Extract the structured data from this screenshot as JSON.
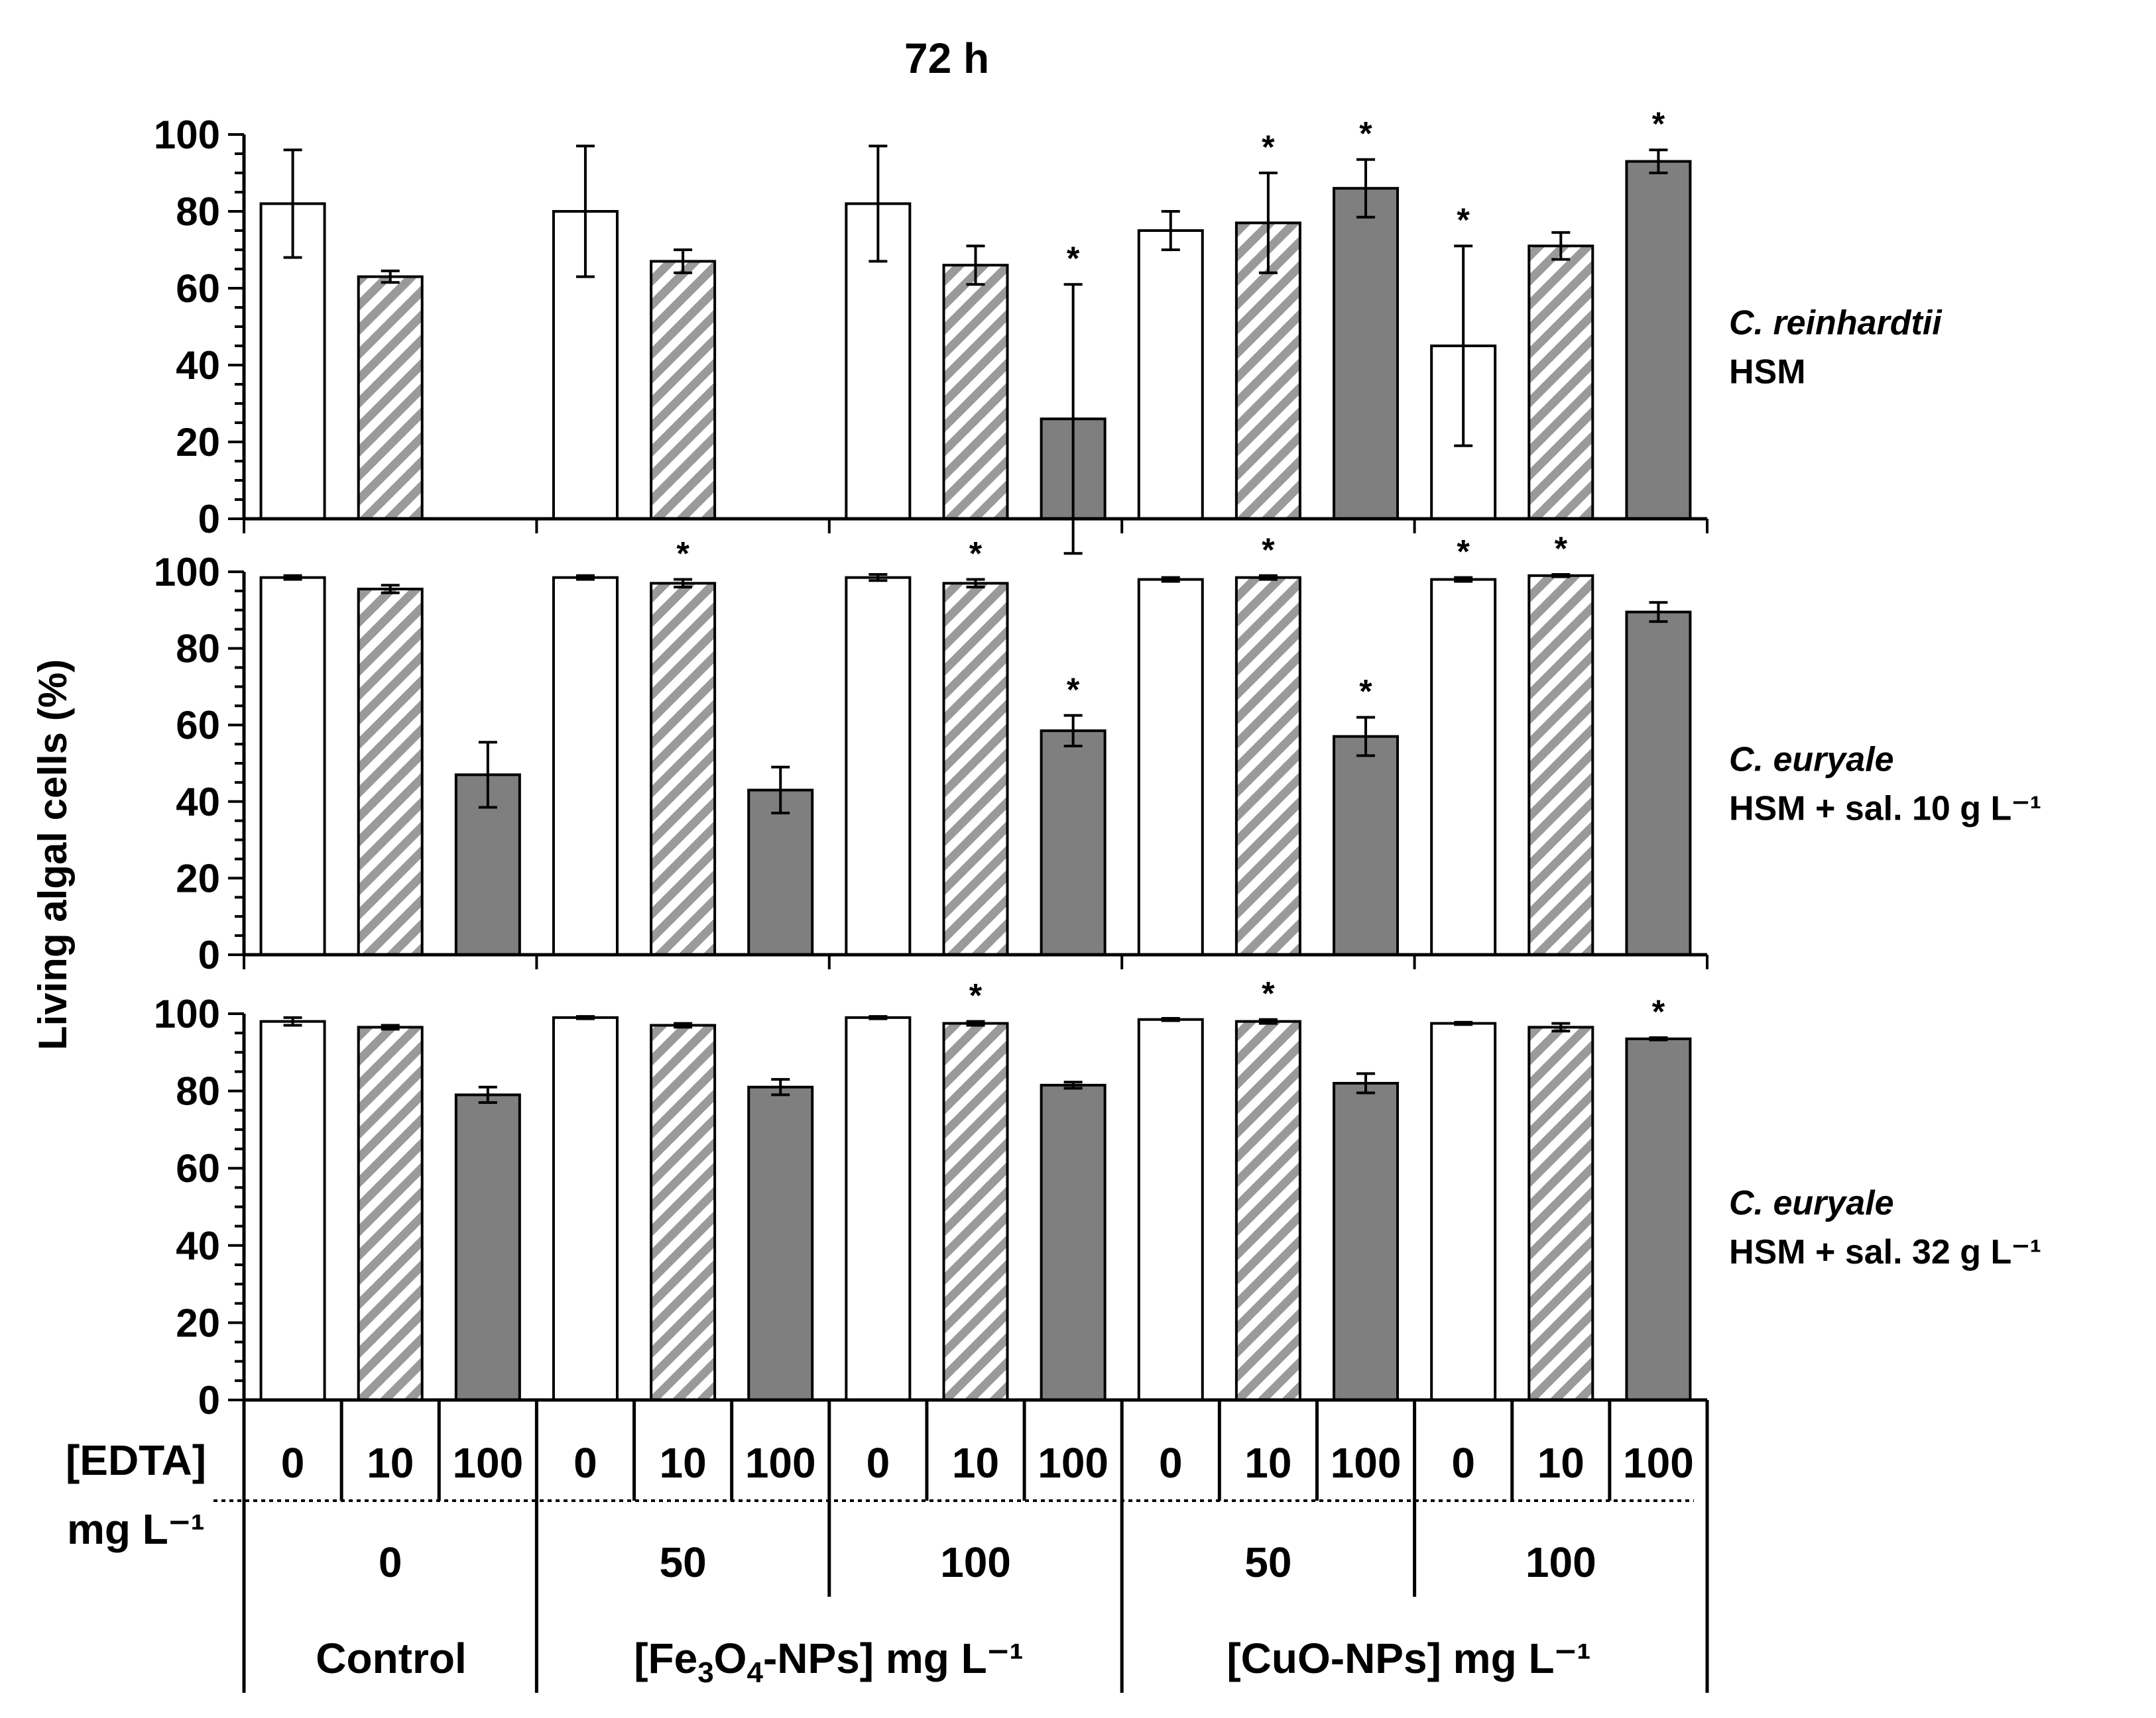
{
  "chart_data": {
    "type": "bar",
    "title": "72 h",
    "ylabel": "Living algal cells (%)",
    "ylim": [
      0,
      100
    ],
    "yticks": [
      "0",
      "20",
      "40",
      "60",
      "80",
      "100"
    ],
    "edta_row_label": "[EDTA]",
    "edta_unit_label": "mg L⁻¹",
    "edta_labels": [
      "0",
      "10",
      "100",
      "0",
      "10",
      "100",
      "0",
      "10",
      "100",
      "0",
      "10",
      "100",
      "0",
      "10",
      "100"
    ],
    "conc_labels": [
      "0",
      "50",
      "100",
      "50",
      "100"
    ],
    "treatment_labels": {
      "control": "Control",
      "fe_pre": "[Fe",
      "fe_sub3": "3",
      "fe_mid": "O",
      "fe_sub4": "4",
      "fe_post": "-NPs] mg L⁻¹",
      "cuo": "[CuO-NPs] mg L⁻¹"
    },
    "star_symbol": "*",
    "bar_styles": [
      "white",
      "hatched",
      "gray",
      "white",
      "hatched",
      "gray",
      "white",
      "hatched",
      "gray",
      "white",
      "hatched",
      "gray",
      "white",
      "hatched",
      "gray"
    ],
    "colors": {
      "gray": "#7f7f7f",
      "hatch_stripe": "#9a9a9a",
      "white": "#ffffff",
      "axis": "#000000"
    },
    "panels": [
      {
        "species": "C. reinhardtii",
        "medium": "HSM",
        "values": [
          82,
          63,
          null,
          80,
          67,
          null,
          82,
          66,
          26,
          75,
          77,
          86,
          45,
          71,
          93
        ],
        "errors": [
          14,
          1.5,
          null,
          17,
          3,
          null,
          15,
          5,
          35,
          5,
          13,
          7.5,
          26,
          3.5,
          3
        ],
        "significant": [
          false,
          false,
          false,
          false,
          false,
          false,
          false,
          false,
          true,
          false,
          true,
          true,
          true,
          false,
          true
        ]
      },
      {
        "species": "C. euryale",
        "medium": "HSM + sal. 10 g L⁻¹",
        "values": [
          98.5,
          95.5,
          47,
          98.5,
          97,
          43,
          98.5,
          97,
          58.5,
          98,
          98.5,
          57,
          98,
          99,
          89.5
        ],
        "errors": [
          0.5,
          1,
          8.5,
          0.5,
          1,
          6,
          0.8,
          1,
          4,
          0.5,
          0.5,
          5,
          0.5,
          0.3,
          2.5
        ],
        "significant": [
          false,
          false,
          false,
          false,
          true,
          false,
          false,
          true,
          true,
          false,
          true,
          true,
          true,
          true,
          false
        ]
      },
      {
        "species": "C. euryale",
        "medium": "HSM + sal. 32 g L⁻¹",
        "values": [
          98,
          96.5,
          79,
          99,
          97,
          81,
          99,
          97.5,
          81.5,
          98.5,
          98,
          82,
          97.5,
          96.5,
          93.5
        ],
        "errors": [
          1,
          0.5,
          2,
          0.3,
          0.5,
          2,
          0.3,
          0.5,
          0.8,
          0.3,
          0.5,
          2.5,
          0.3,
          1,
          0.3
        ],
        "significant": [
          false,
          false,
          false,
          false,
          false,
          false,
          false,
          true,
          false,
          false,
          true,
          false,
          false,
          false,
          true
        ]
      }
    ]
  }
}
